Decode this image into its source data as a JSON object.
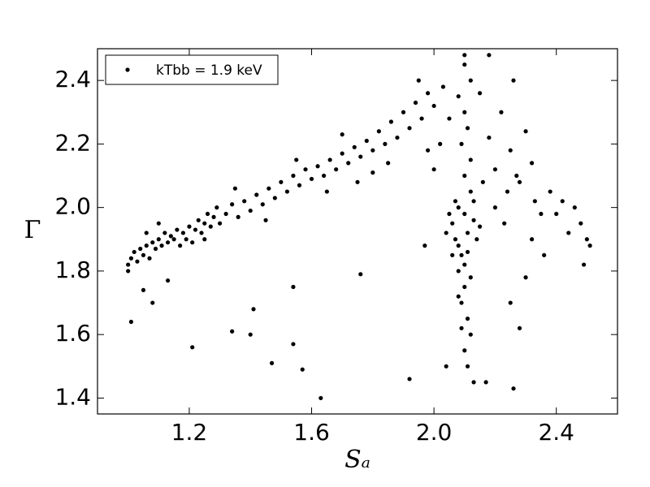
{
  "chart_data": {
    "type": "scatter",
    "xlabel": "Sₐ",
    "ylabel": "Γ",
    "xlim": [
      0.9,
      2.6
    ],
    "ylim": [
      1.35,
      2.5
    ],
    "xticks": [
      1.2,
      1.6,
      {
        "value": 2,
        "label": "2.0"
      },
      2.4
    ],
    "yticks": [
      1.4,
      1.6,
      1.8,
      {
        "value": 2,
        "label": "2.0"
      },
      2.2,
      2.4
    ],
    "legend": "upper left",
    "x": [
      1.0,
      1.0,
      1.01,
      1.02,
      1.03,
      1.04,
      1.05,
      1.06,
      1.07,
      1.08,
      1.09,
      1.1,
      1.11,
      1.12,
      1.13,
      1.14,
      1.15,
      1.16,
      1.17,
      1.18,
      1.19,
      1.2,
      1.21,
      1.22,
      1.23,
      1.24,
      1.25,
      1.26,
      1.27,
      1.28,
      1.29,
      1.3,
      1.32,
      1.34,
      1.36,
      1.38,
      1.4,
      1.42,
      1.44,
      1.46,
      1.48,
      1.5,
      1.52,
      1.54,
      1.56,
      1.58,
      1.6,
      1.62,
      1.64,
      1.66,
      1.68,
      1.7,
      1.72,
      1.74,
      1.76,
      1.78,
      1.8,
      1.82,
      1.84,
      1.86,
      1.88,
      1.9,
      1.92,
      1.94,
      1.96,
      1.98,
      1.1,
      1.25,
      1.45,
      1.65,
      1.75,
      1.85,
      1.06,
      1.35,
      1.55,
      1.7,
      1.8,
      2.06,
      2.07,
      2.08,
      2.09,
      2.1,
      2.11,
      2.12,
      2.08,
      2.1,
      2.09,
      2.11,
      2.12,
      2.1,
      2.11,
      2.13,
      2.09,
      2.08,
      2.07,
      2.13,
      2.14,
      2.06,
      2.05,
      2.1,
      2.12,
      2.09,
      2.11,
      2.1,
      2.08,
      2.12,
      2.1,
      2.1,
      2.15,
      2.04,
      2.1,
      2.12,
      2.08,
      2.11,
      2.13,
      1.95,
      2.0,
      2.02,
      2.05,
      2.15,
      2.18,
      2.2,
      2.22,
      2.25,
      2.28,
      2.3,
      2.32,
      2.2,
      2.24,
      2.16,
      2.26,
      2.18,
      2.0,
      1.98,
      2.03,
      2.27,
      2.33,
      2.35,
      2.23,
      2.38,
      2.4,
      2.42,
      2.44,
      2.46,
      2.48,
      2.5,
      2.51,
      2.49,
      2.36,
      2.3,
      2.25,
      2.28,
      2.32,
      1.01,
      1.05,
      1.08,
      1.21,
      1.34,
      1.41,
      1.4,
      1.47,
      1.54,
      1.54,
      1.57,
      1.63,
      1.76,
      1.92,
      2.04,
      2.26,
      1.97,
      2.17,
      1.13
    ],
    "series": [
      {
        "name": "kTbb = 1.9 keV",
        "color": "#000000",
        "values": [
          1.8,
          1.82,
          1.84,
          1.86,
          1.83,
          1.87,
          1.85,
          1.88,
          1.84,
          1.89,
          1.87,
          1.9,
          1.88,
          1.92,
          1.89,
          1.91,
          1.9,
          1.93,
          1.88,
          1.92,
          1.9,
          1.94,
          1.89,
          1.93,
          1.96,
          1.92,
          1.95,
          1.98,
          1.94,
          1.97,
          2.0,
          1.95,
          1.98,
          2.01,
          1.97,
          2.02,
          1.99,
          2.04,
          2.01,
          2.06,
          2.03,
          2.08,
          2.05,
          2.1,
          2.07,
          2.12,
          2.09,
          2.13,
          2.1,
          2.15,
          2.12,
          2.17,
          2.14,
          2.19,
          2.16,
          2.21,
          2.18,
          2.24,
          2.2,
          2.27,
          2.22,
          2.3,
          2.25,
          2.33,
          2.28,
          2.36,
          1.95,
          1.9,
          1.96,
          2.05,
          2.08,
          2.14,
          1.92,
          2.06,
          2.15,
          2.23,
          2.11,
          1.95,
          1.9,
          2.0,
          1.85,
          1.98,
          1.92,
          2.05,
          1.8,
          1.75,
          1.7,
          1.65,
          1.6,
          1.55,
          1.5,
          1.45,
          1.62,
          1.88,
          2.02,
          1.96,
          1.9,
          1.85,
          1.98,
          2.1,
          2.15,
          2.2,
          2.25,
          2.3,
          2.35,
          2.4,
          2.45,
          2.48,
          1.94,
          1.92,
          1.82,
          1.78,
          1.72,
          1.86,
          2.02,
          2.4,
          2.32,
          2.2,
          2.28,
          2.36,
          2.22,
          2.12,
          2.3,
          2.18,
          2.08,
          2.24,
          2.14,
          2.0,
          2.05,
          2.08,
          2.4,
          2.48,
          2.12,
          2.18,
          2.38,
          2.1,
          2.02,
          1.98,
          1.95,
          2.05,
          1.98,
          2.02,
          1.92,
          2.0,
          1.95,
          1.9,
          1.88,
          1.82,
          1.85,
          1.78,
          1.7,
          1.62,
          1.9,
          1.64,
          1.74,
          1.7,
          1.56,
          1.61,
          1.68,
          1.6,
          1.51,
          1.75,
          1.57,
          1.49,
          1.4,
          1.79,
          1.46,
          1.5,
          1.43,
          1.88,
          1.45,
          1.77
        ]
      }
    ]
  }
}
